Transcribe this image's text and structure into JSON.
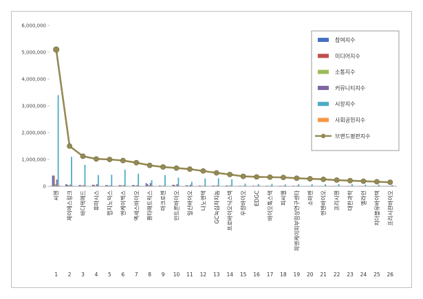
{
  "chart_data": {
    "type": "bar",
    "title": "",
    "xlabel": "",
    "ylabel": "",
    "ylim": [
      0,
      6000000
    ],
    "yticks": [
      "0",
      "1,000,000",
      "2,000,000",
      "3,000,000",
      "4,000,000",
      "5,000,000",
      "6,000,000"
    ],
    "grid": false,
    "legend_position": "top-right",
    "ranks": [
      "1",
      "2",
      "3",
      "4",
      "5",
      "6",
      "7",
      "8",
      "9",
      "10",
      "11",
      "12",
      "13",
      "14",
      "15",
      "16",
      "17",
      "18",
      "19",
      "20",
      "21",
      "22",
      "23",
      "24",
      "25",
      "26"
    ],
    "categories": [
      "씨젠",
      "제이에스링크",
      "바디텍메드",
      "휴마시스",
      "랩지노믹스",
      "엔케이맥스",
      "엑세스바이오",
      "퀀타매트릭스",
      "마크로젠",
      "인트론바이오",
      "일신바이오",
      "나노엔텍",
      "GC녹십자지놈",
      "프로바이오닉스텍",
      "우정바이오",
      "EDGC",
      "바이오톡스텍",
      "피씨엘",
      "피엔케이피부임상연구센타",
      "소마젠",
      "엔젠바이오",
      "프리시젠",
      "대한과학",
      "엘라인",
      "지더블유바이텍",
      "프리시젼바이오"
    ],
    "series": [
      {
        "name": "참여지수",
        "color": "#4472c4",
        "kind": "bar",
        "values": [
          400000,
          80000,
          50000,
          60000,
          50000,
          45000,
          50000,
          120000,
          30000,
          60000,
          40000,
          30000,
          30000,
          30000,
          20000,
          20000,
          20000,
          20000,
          20000,
          10000,
          10000,
          10000,
          10000,
          10000,
          10000,
          10000
        ]
      },
      {
        "name": "미디어지수",
        "color": "#c0504d",
        "kind": "bar",
        "values": [
          400000,
          60000,
          40000,
          50000,
          40000,
          40000,
          40000,
          80000,
          20000,
          50000,
          30000,
          20000,
          25000,
          25000,
          15000,
          15000,
          15000,
          15000,
          15000,
          8000,
          8000,
          8000,
          8000,
          8000,
          8000,
          8000
        ]
      },
      {
        "name": "소통지수",
        "color": "#9bbb59",
        "kind": "bar",
        "values": [
          80000,
          30000,
          20000,
          20000,
          20000,
          20000,
          20000,
          30000,
          10000,
          20000,
          15000,
          10000,
          10000,
          10000,
          8000,
          8000,
          8000,
          8000,
          8000,
          5000,
          5000,
          5000,
          5000,
          5000,
          5000,
          5000
        ]
      },
      {
        "name": "커뮤니티지수",
        "color": "#8064a2",
        "kind": "bar",
        "values": [
          250000,
          60000,
          40000,
          80000,
          30000,
          40000,
          40000,
          120000,
          20000,
          80000,
          60000,
          20000,
          30000,
          30000,
          20000,
          20000,
          20000,
          20000,
          20000,
          10000,
          10000,
          10000,
          10000,
          10000,
          10000,
          10000
        ]
      },
      {
        "name": "시장지수",
        "color": "#4bacc6",
        "kind": "bar",
        "values": [
          3400000,
          1100000,
          800000,
          420000,
          430000,
          620000,
          470000,
          230000,
          420000,
          320000,
          170000,
          290000,
          300000,
          260000,
          100000,
          80000,
          90000,
          70000,
          80000,
          80000,
          80000,
          80000,
          80000,
          60000,
          60000,
          50000
        ]
      },
      {
        "name": "사회공헌지수",
        "color": "#f79646",
        "kind": "bar",
        "values": [
          30000,
          20000,
          15000,
          15000,
          15000,
          15000,
          15000,
          15000,
          10000,
          10000,
          10000,
          10000,
          10000,
          10000,
          8000,
          8000,
          8000,
          8000,
          8000,
          5000,
          5000,
          5000,
          5000,
          5000,
          5000,
          5000
        ]
      },
      {
        "name": "브랜드평판지수",
        "color": "#948a54",
        "kind": "line",
        "values": [
          5100000,
          1500000,
          1120000,
          1020000,
          1000000,
          960000,
          880000,
          780000,
          720000,
          680000,
          640000,
          570000,
          500000,
          440000,
          370000,
          350000,
          340000,
          330000,
          300000,
          280000,
          260000,
          230000,
          210000,
          190000,
          170000,
          150000
        ]
      }
    ]
  }
}
